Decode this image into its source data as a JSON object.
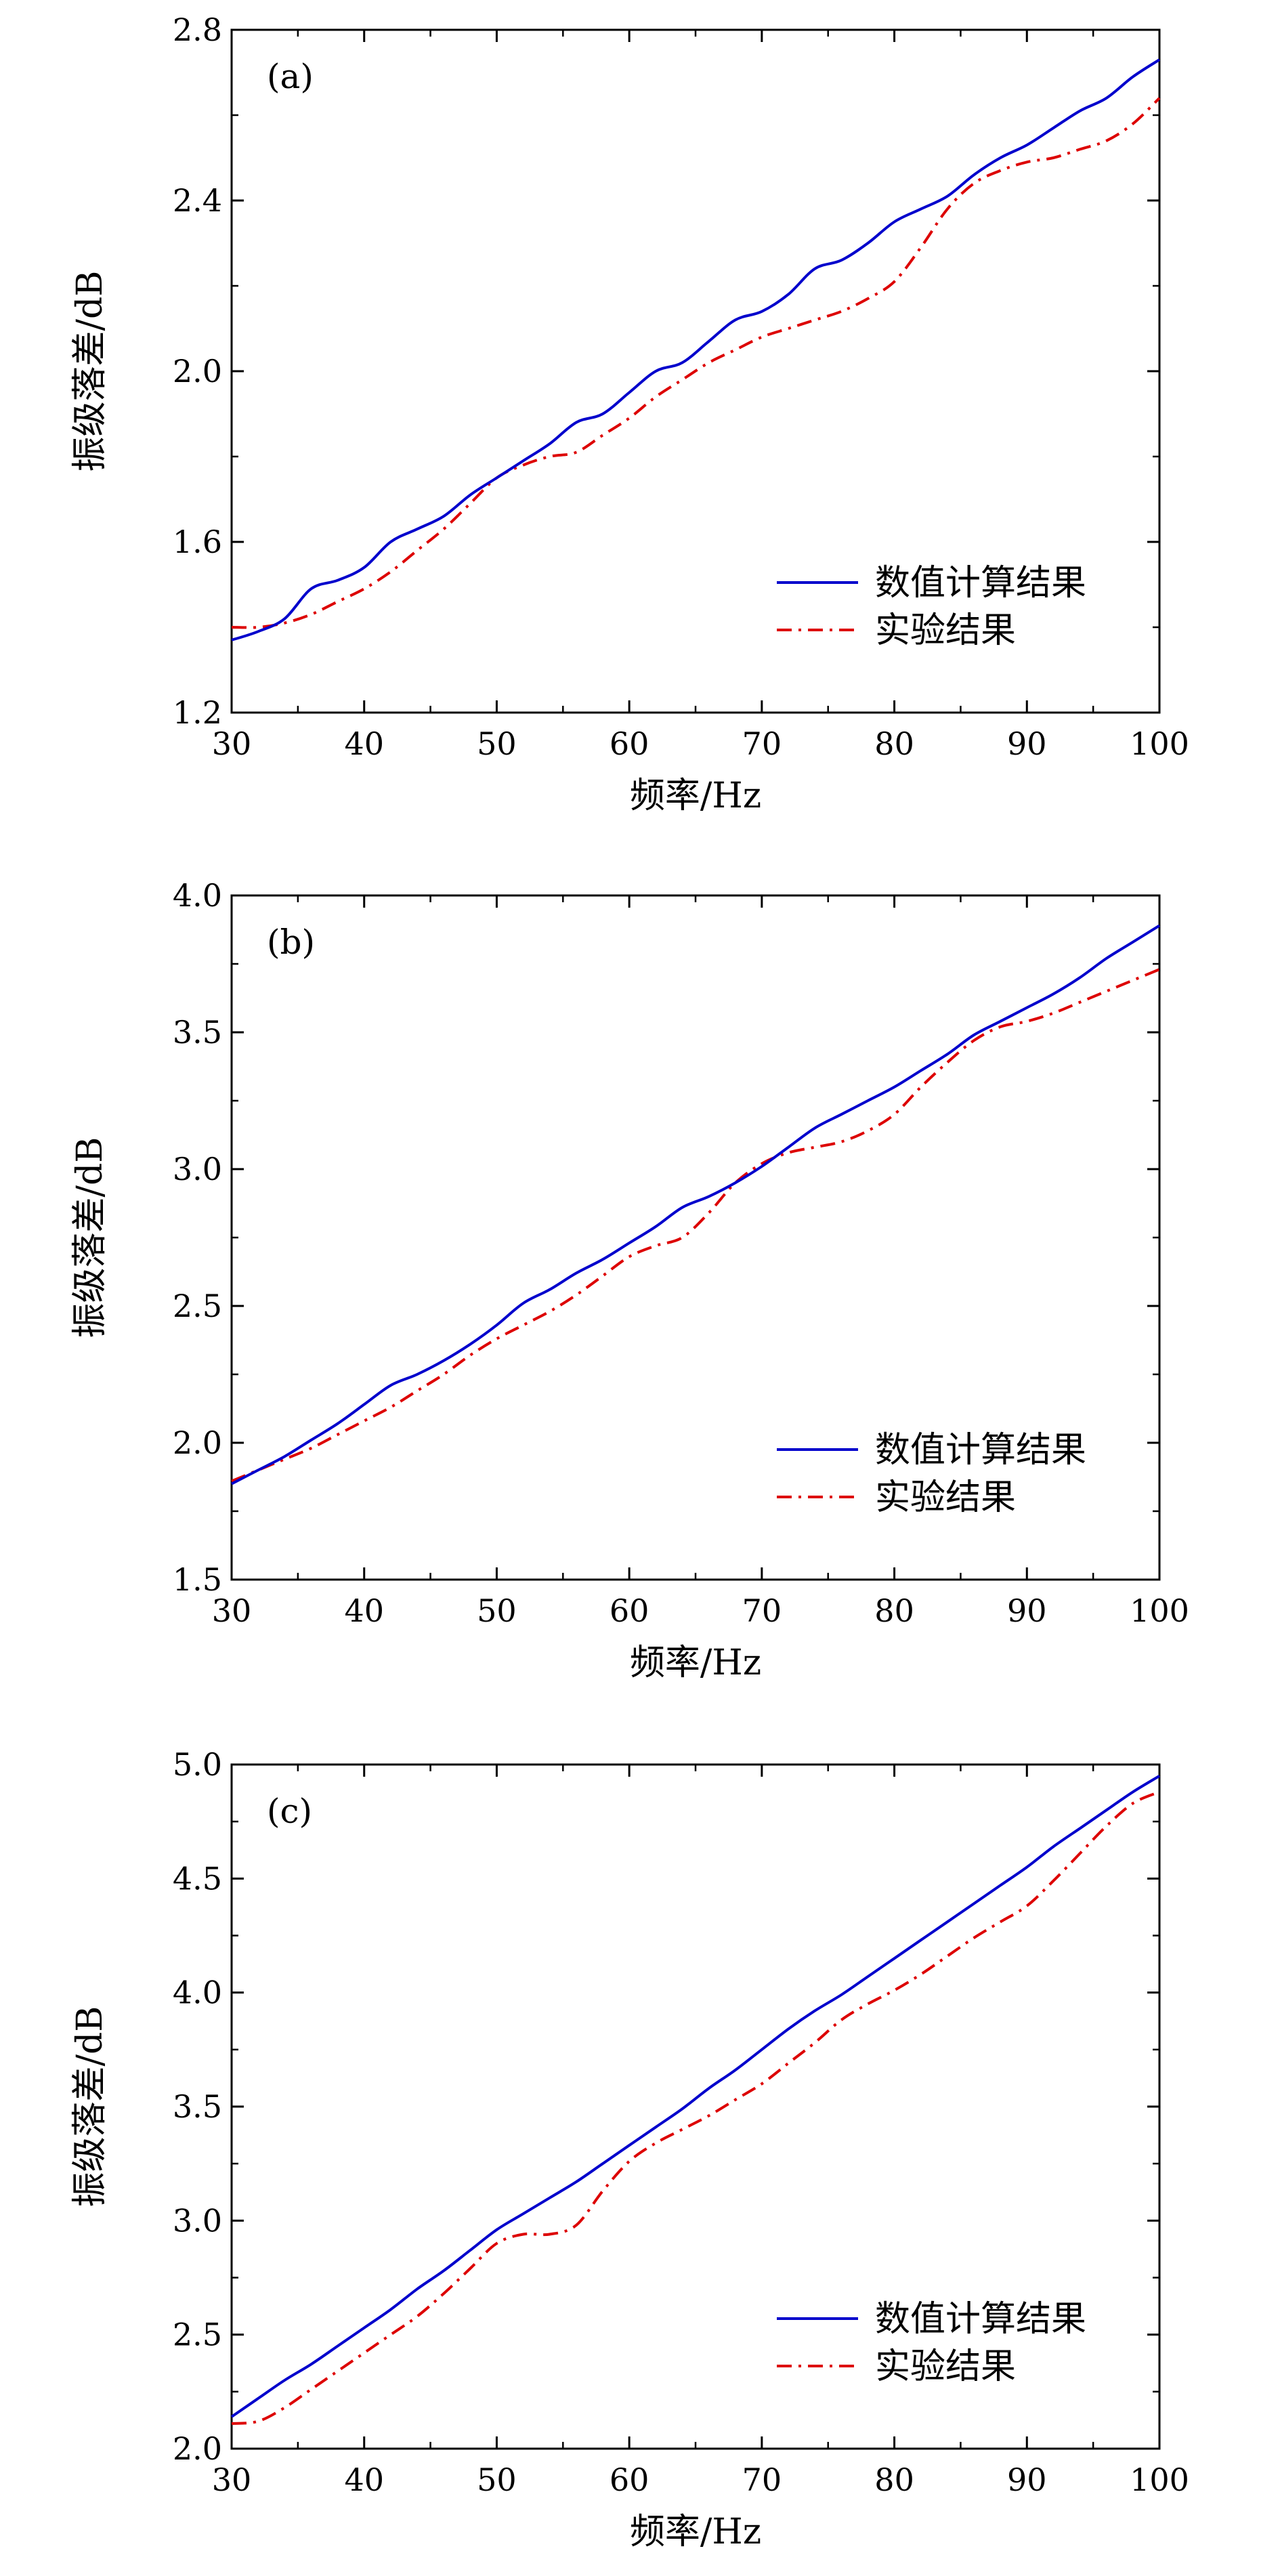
{
  "chart_data": [
    {
      "type": "line",
      "panel_label": "(a)",
      "xlabel": "频率/Hz",
      "ylabel": "振级落差/dB",
      "xlim": [
        30,
        100
      ],
      "ylim": [
        1.2,
        2.8
      ],
      "xticks": [
        "30",
        "40",
        "50",
        "60",
        "70",
        "80",
        "90",
        "100"
      ],
      "yticks": [
        "1.2",
        "1.6",
        "2.0",
        "2.4",
        "2.8"
      ],
      "grid": false,
      "legend_position": "lower-right",
      "series": [
        {
          "name": "数值计算结果",
          "color": "#0000cc",
          "style": "solid",
          "x": [
            30,
            32,
            34,
            36,
            38,
            40,
            42,
            44,
            46,
            48,
            50,
            52,
            54,
            56,
            58,
            60,
            62,
            64,
            66,
            68,
            70,
            72,
            74,
            76,
            78,
            80,
            82,
            84,
            86,
            88,
            90,
            92,
            94,
            96,
            98,
            100
          ],
          "y": [
            1.37,
            1.39,
            1.42,
            1.49,
            1.51,
            1.54,
            1.6,
            1.63,
            1.66,
            1.71,
            1.75,
            1.79,
            1.83,
            1.88,
            1.9,
            1.95,
            2.0,
            2.02,
            2.07,
            2.12,
            2.14,
            2.18,
            2.24,
            2.26,
            2.3,
            2.35,
            2.38,
            2.41,
            2.46,
            2.5,
            2.53,
            2.57,
            2.61,
            2.64,
            2.69,
            2.73
          ]
        },
        {
          "name": "实验结果",
          "color": "#dd0000",
          "style": "dashdot",
          "x": [
            30,
            32,
            34,
            36,
            38,
            40,
            42,
            44,
            46,
            48,
            50,
            52,
            54,
            56,
            58,
            60,
            62,
            64,
            66,
            68,
            70,
            72,
            74,
            76,
            78,
            80,
            82,
            84,
            86,
            88,
            90,
            92,
            94,
            96,
            98,
            100
          ],
          "y": [
            1.4,
            1.4,
            1.41,
            1.43,
            1.46,
            1.49,
            1.53,
            1.58,
            1.63,
            1.69,
            1.75,
            1.78,
            1.8,
            1.81,
            1.85,
            1.89,
            1.94,
            1.98,
            2.02,
            2.05,
            2.08,
            2.1,
            2.12,
            2.14,
            2.17,
            2.21,
            2.29,
            2.38,
            2.44,
            2.47,
            2.49,
            2.5,
            2.52,
            2.54,
            2.58,
            2.64
          ]
        }
      ]
    },
    {
      "type": "line",
      "panel_label": "(b)",
      "xlabel": "频率/Hz",
      "ylabel": "振级落差/dB",
      "xlim": [
        30,
        100
      ],
      "ylim": [
        1.5,
        4.0
      ],
      "xticks": [
        "30",
        "40",
        "50",
        "60",
        "70",
        "80",
        "90",
        "100"
      ],
      "yticks": [
        "1.5",
        "2.0",
        "2.5",
        "3.0",
        "3.5",
        "4.0"
      ],
      "grid": false,
      "legend_position": "lower-right",
      "series": [
        {
          "name": "数值计算结果",
          "color": "#0000cc",
          "style": "solid",
          "x": [
            30,
            32,
            34,
            36,
            38,
            40,
            42,
            44,
            46,
            48,
            50,
            52,
            54,
            56,
            58,
            60,
            62,
            64,
            66,
            68,
            70,
            72,
            74,
            76,
            78,
            80,
            82,
            84,
            86,
            88,
            90,
            92,
            94,
            96,
            98,
            100
          ],
          "y": [
            1.85,
            1.9,
            1.95,
            2.01,
            2.07,
            2.14,
            2.21,
            2.25,
            2.3,
            2.36,
            2.43,
            2.51,
            2.56,
            2.62,
            2.67,
            2.73,
            2.79,
            2.86,
            2.9,
            2.95,
            3.01,
            3.08,
            3.15,
            3.2,
            3.25,
            3.3,
            3.36,
            3.42,
            3.49,
            3.54,
            3.59,
            3.64,
            3.7,
            3.77,
            3.83,
            3.89
          ]
        },
        {
          "name": "实验结果",
          "color": "#dd0000",
          "style": "dashdot",
          "x": [
            30,
            32,
            34,
            36,
            38,
            40,
            42,
            44,
            46,
            48,
            50,
            52,
            54,
            56,
            58,
            60,
            62,
            64,
            66,
            68,
            70,
            72,
            74,
            76,
            78,
            80,
            82,
            84,
            86,
            88,
            90,
            92,
            94,
            96,
            98,
            100
          ],
          "y": [
            1.86,
            1.9,
            1.94,
            1.98,
            2.03,
            2.08,
            2.13,
            2.19,
            2.25,
            2.32,
            2.38,
            2.43,
            2.48,
            2.54,
            2.61,
            2.68,
            2.72,
            2.75,
            2.84,
            2.95,
            3.02,
            3.06,
            3.08,
            3.1,
            3.14,
            3.2,
            3.3,
            3.39,
            3.47,
            3.52,
            3.54,
            3.57,
            3.61,
            3.65,
            3.69,
            3.73
          ]
        }
      ]
    },
    {
      "type": "line",
      "panel_label": "(c)",
      "xlabel": "频率/Hz",
      "ylabel": "振级落差/dB",
      "xlim": [
        30,
        100
      ],
      "ylim": [
        2.0,
        5.0
      ],
      "xticks": [
        "30",
        "40",
        "50",
        "60",
        "70",
        "80",
        "90",
        "100"
      ],
      "yticks": [
        "2.0",
        "2.5",
        "3.0",
        "3.5",
        "4.0",
        "4.5",
        "5.0"
      ],
      "grid": false,
      "legend_position": "lower-right",
      "series": [
        {
          "name": "数值计算结果",
          "color": "#0000cc",
          "style": "solid",
          "x": [
            30,
            32,
            34,
            36,
            38,
            40,
            42,
            44,
            46,
            48,
            50,
            52,
            54,
            56,
            58,
            60,
            62,
            64,
            66,
            68,
            70,
            72,
            74,
            76,
            78,
            80,
            82,
            84,
            86,
            88,
            90,
            92,
            94,
            96,
            98,
            100
          ],
          "y": [
            2.14,
            2.22,
            2.3,
            2.37,
            2.45,
            2.53,
            2.61,
            2.7,
            2.78,
            2.87,
            2.96,
            3.03,
            3.1,
            3.17,
            3.25,
            3.33,
            3.41,
            3.49,
            3.58,
            3.66,
            3.75,
            3.84,
            3.92,
            3.99,
            4.07,
            4.15,
            4.23,
            4.31,
            4.39,
            4.47,
            4.55,
            4.64,
            4.72,
            4.8,
            4.88,
            4.95
          ]
        },
        {
          "name": "实验结果",
          "color": "#dd0000",
          "style": "dashdot",
          "x": [
            30,
            32,
            34,
            36,
            38,
            40,
            42,
            44,
            46,
            48,
            50,
            52,
            54,
            56,
            58,
            60,
            62,
            64,
            66,
            68,
            70,
            72,
            74,
            76,
            78,
            80,
            82,
            84,
            86,
            88,
            90,
            92,
            94,
            96,
            98,
            100
          ],
          "y": [
            2.11,
            2.12,
            2.18,
            2.26,
            2.34,
            2.42,
            2.5,
            2.58,
            2.68,
            2.79,
            2.9,
            2.94,
            2.94,
            2.98,
            3.13,
            3.26,
            3.34,
            3.4,
            3.46,
            3.53,
            3.6,
            3.69,
            3.78,
            3.88,
            3.95,
            4.01,
            4.08,
            4.16,
            4.24,
            4.31,
            4.38,
            4.49,
            4.61,
            4.73,
            4.83,
            4.88
          ]
        }
      ]
    }
  ]
}
